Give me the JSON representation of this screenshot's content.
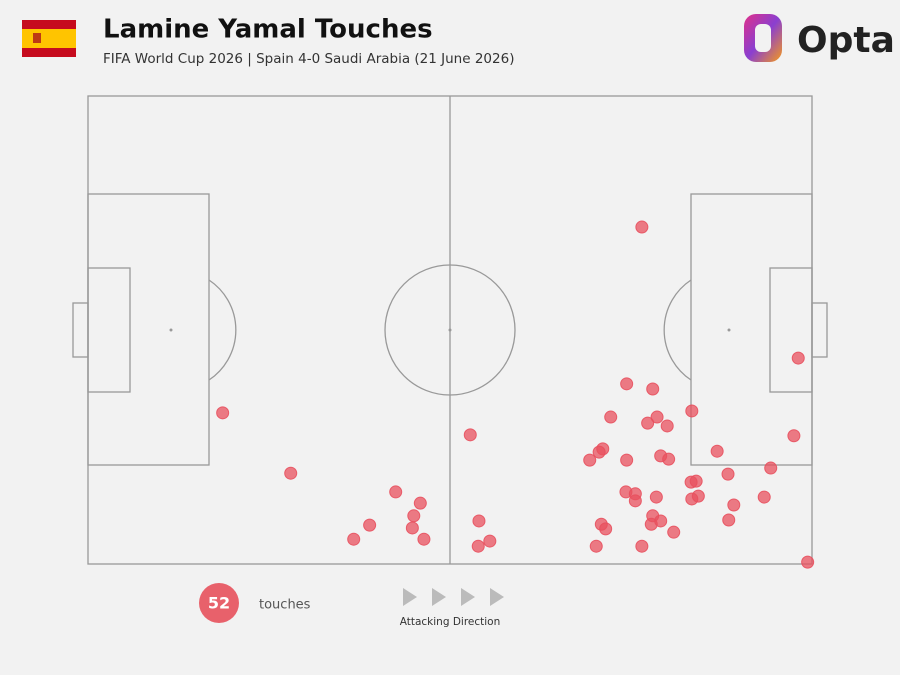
{
  "chart_data": {
    "type": "scatter",
    "title": "Lamine Yamal Touches",
    "subtitle": "FIFA World Cup 2026 | Spain 4-0 Saudi Arabia (21 June 2026)",
    "logo": "Opta",
    "count": 52,
    "count_label": "touches",
    "direction_label": "Attacking Direction",
    "color": "#e8505e",
    "xlim": [
      0,
      100
    ],
    "ylim": [
      0,
      100
    ],
    "x": [
      76.5,
      98.1,
      18.6,
      52.8,
      28.0,
      42.5,
      45.9,
      45.0,
      38.9,
      44.8,
      36.7,
      46.4,
      54.0,
      55.5,
      53.9,
      74.4,
      78.0,
      72.2,
      78.6,
      77.3,
      80.0,
      83.4,
      97.5,
      71.1,
      70.6,
      69.3,
      74.4,
      79.1,
      80.2,
      86.9,
      94.3,
      88.4,
      83.3,
      84.0,
      74.3,
      75.6,
      75.6,
      78.5,
      83.4,
      84.3,
      93.4,
      89.2,
      70.9,
      71.5,
      78.0,
      77.8,
      79.1,
      88.5,
      80.9,
      70.2,
      76.5,
      99.4
    ],
    "y": [
      72.0,
      44.0,
      32.3,
      27.6,
      19.4,
      15.4,
      13.0,
      10.3,
      8.3,
      7.7,
      5.3,
      5.3,
      9.2,
      4.9,
      3.8,
      38.5,
      37.4,
      31.4,
      31.4,
      30.1,
      29.5,
      32.7,
      27.4,
      24.6,
      23.9,
      22.2,
      22.2,
      23.1,
      22.4,
      24.1,
      20.5,
      19.2,
      17.5,
      17.7,
      15.4,
      15.0,
      13.5,
      14.3,
      13.9,
      14.5,
      14.3,
      12.6,
      8.5,
      7.5,
      10.3,
      8.5,
      9.2,
      9.4,
      6.8,
      3.8,
      3.8,
      0.4
    ]
  }
}
